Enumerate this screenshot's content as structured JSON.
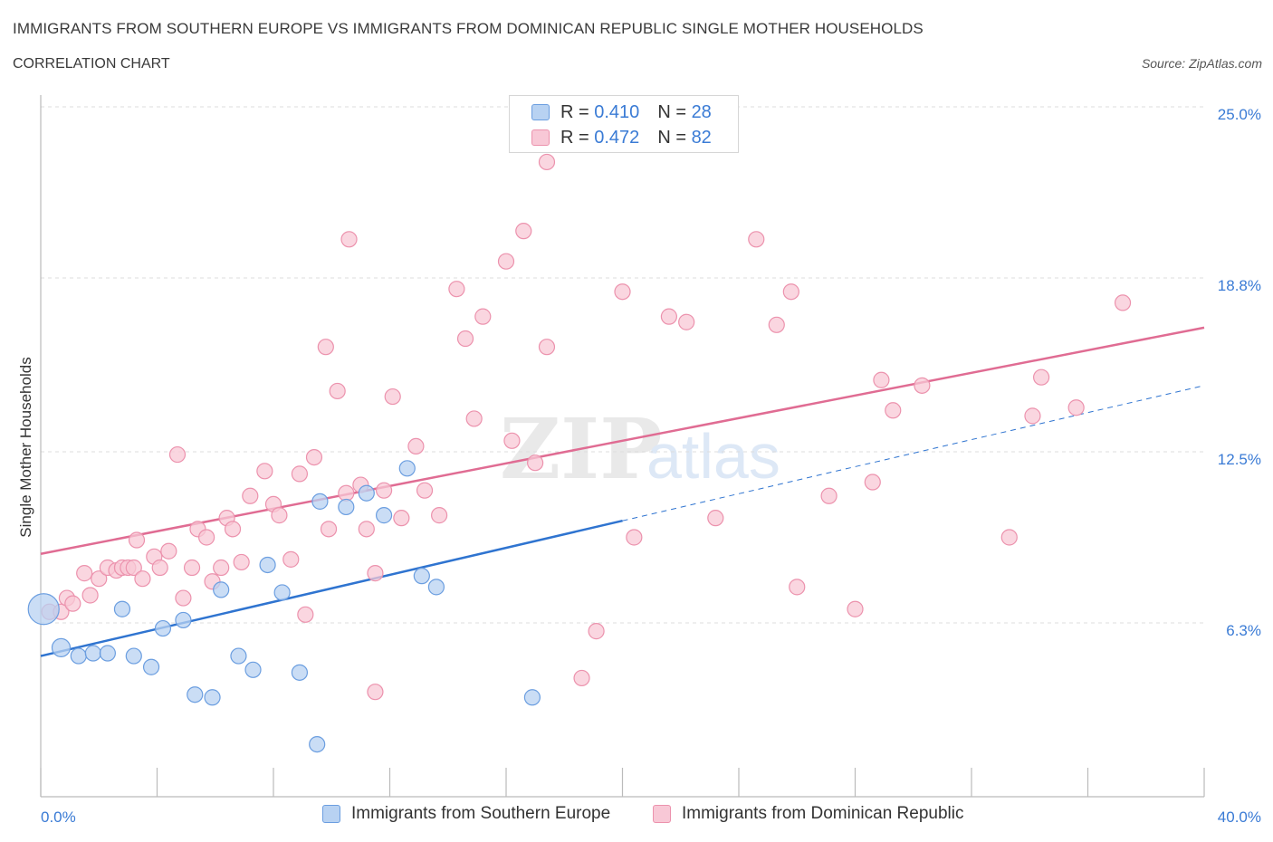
{
  "title": "IMMIGRANTS FROM SOUTHERN EUROPE VS IMMIGRANTS FROM DOMINICAN REPUBLIC SINGLE MOTHER HOUSEHOLDS",
  "subtitle": "CORRELATION CHART",
  "source": "Source: ZipAtlas.com",
  "watermark": {
    "zip": "ZIP",
    "atlas": "atlas"
  },
  "colors": {
    "blue_fill": "#b8d2f2",
    "blue_stroke": "#6b9ee0",
    "blue_line": "#2f74d0",
    "pink_fill": "#f8c8d6",
    "pink_stroke": "#ec92ad",
    "pink_line": "#e06c93",
    "axis_text": "#3a7bd5",
    "grid": "#dddddd"
  },
  "legend": {
    "r_label": "R = ",
    "n_label": "N = ",
    "rows": [
      {
        "series": "blue",
        "r_value": "0.410",
        "n_value": "28"
      },
      {
        "series": "pink",
        "r_value": "0.472",
        "n_value": "82"
      }
    ]
  },
  "bottom_legend": [
    {
      "series": "blue",
      "label": "Immigrants from Southern Europe"
    },
    {
      "series": "pink",
      "label": "Immigrants from Dominican Republic"
    }
  ],
  "chart_data": {
    "type": "scatter",
    "title": "IMMIGRANTS FROM SOUTHERN EUROPE VS IMMIGRANTS FROM DOMINICAN REPUBLIC SINGLE MOTHER HOUSEHOLDS",
    "xlabel": "",
    "ylabel": "Single Mother Households",
    "xlim": [
      0,
      40
    ],
    "ylim": [
      0,
      25
    ],
    "x_tick_labels": [
      "0.0%",
      "40.0%"
    ],
    "y_tick_labels": [
      "6.3%",
      "12.5%",
      "18.8%",
      "25.0%"
    ],
    "y_tick_values": [
      6.3,
      12.5,
      18.8,
      25.0
    ],
    "grid": true,
    "legend_position": "top-center",
    "series": [
      {
        "name": "Immigrants from Southern Europe",
        "color": "blue",
        "r": 0.41,
        "n": 28,
        "points": [
          [
            0.1,
            6.8,
            3
          ],
          [
            0.7,
            5.4,
            2
          ],
          [
            1.3,
            5.1,
            1
          ],
          [
            1.8,
            5.2,
            1
          ],
          [
            2.3,
            5.2,
            1
          ],
          [
            2.8,
            6.8,
            1
          ],
          [
            3.2,
            5.1,
            1
          ],
          [
            3.8,
            4.7,
            1
          ],
          [
            4.2,
            6.1,
            1
          ],
          [
            4.9,
            6.4,
            1
          ],
          [
            5.3,
            3.7,
            1
          ],
          [
            5.9,
            3.6,
            1
          ],
          [
            6.2,
            7.5,
            1
          ],
          [
            6.8,
            5.1,
            1
          ],
          [
            7.3,
            4.6,
            1
          ],
          [
            7.8,
            8.4,
            1
          ],
          [
            8.3,
            7.4,
            1
          ],
          [
            8.9,
            4.5,
            1
          ],
          [
            9.5,
            1.9,
            1
          ],
          [
            9.6,
            10.7,
            1
          ],
          [
            10.5,
            10.5,
            1
          ],
          [
            11.2,
            11.0,
            1
          ],
          [
            11.8,
            10.2,
            1
          ],
          [
            12.6,
            11.9,
            1
          ],
          [
            13.1,
            8.0,
            1
          ],
          [
            13.6,
            7.6,
            1
          ],
          [
            16.9,
            3.6,
            1
          ]
        ],
        "trend": {
          "x": [
            0,
            40
          ],
          "y": [
            5.1,
            14.9
          ],
          "solid_until_x": 20
        }
      },
      {
        "name": "Immigrants from Dominican Republic",
        "color": "pink",
        "r": 0.472,
        "n": 82,
        "points": [
          [
            0.3,
            6.7,
            1
          ],
          [
            0.7,
            6.7,
            1
          ],
          [
            0.9,
            7.2,
            1
          ],
          [
            1.1,
            7.0,
            1
          ],
          [
            1.5,
            8.1,
            1
          ],
          [
            1.7,
            7.3,
            1
          ],
          [
            2.0,
            7.9,
            1
          ],
          [
            2.3,
            8.3,
            1
          ],
          [
            2.6,
            8.2,
            1
          ],
          [
            2.8,
            8.3,
            1
          ],
          [
            3.0,
            8.3,
            1
          ],
          [
            3.2,
            8.3,
            1
          ],
          [
            3.3,
            9.3,
            1
          ],
          [
            3.5,
            7.9,
            1
          ],
          [
            3.9,
            8.7,
            1
          ],
          [
            4.1,
            8.3,
            1
          ],
          [
            4.4,
            8.9,
            1
          ],
          [
            4.7,
            12.4,
            1
          ],
          [
            4.9,
            7.2,
            1
          ],
          [
            5.2,
            8.3,
            1
          ],
          [
            5.4,
            9.7,
            1
          ],
          [
            5.7,
            9.4,
            1
          ],
          [
            5.9,
            7.8,
            1
          ],
          [
            6.2,
            8.3,
            1
          ],
          [
            6.4,
            10.1,
            1
          ],
          [
            6.6,
            9.7,
            1
          ],
          [
            6.9,
            8.5,
            1
          ],
          [
            7.2,
            10.9,
            1
          ],
          [
            7.7,
            11.8,
            1
          ],
          [
            8.0,
            10.6,
            1
          ],
          [
            8.2,
            10.2,
            1
          ],
          [
            8.6,
            8.6,
            1
          ],
          [
            8.9,
            11.7,
            1
          ],
          [
            9.1,
            6.6,
            1
          ],
          [
            9.4,
            12.3,
            1
          ],
          [
            9.8,
            16.3,
            1
          ],
          [
            9.9,
            9.7,
            1
          ],
          [
            10.2,
            14.7,
            1
          ],
          [
            10.5,
            11.0,
            1
          ],
          [
            10.6,
            20.2,
            1
          ],
          [
            11.0,
            11.3,
            1
          ],
          [
            11.2,
            9.7,
            1
          ],
          [
            11.5,
            3.8,
            1
          ],
          [
            11.5,
            8.1,
            1
          ],
          [
            11.8,
            11.1,
            1
          ],
          [
            12.1,
            14.5,
            1
          ],
          [
            12.4,
            10.1,
            1
          ],
          [
            12.9,
            12.7,
            1
          ],
          [
            13.2,
            11.1,
            1
          ],
          [
            13.7,
            10.2,
            1
          ],
          [
            14.3,
            18.4,
            1
          ],
          [
            14.6,
            16.6,
            1
          ],
          [
            14.9,
            13.7,
            1
          ],
          [
            15.2,
            17.4,
            1
          ],
          [
            16.2,
            12.9,
            1
          ],
          [
            16.0,
            19.4,
            1
          ],
          [
            16.6,
            20.5,
            1
          ],
          [
            17.0,
            12.1,
            1
          ],
          [
            17.4,
            16.3,
            1
          ],
          [
            17.4,
            23.0,
            1
          ],
          [
            18.6,
            4.3,
            1
          ],
          [
            19.1,
            6.0,
            1
          ],
          [
            20.0,
            18.3,
            1
          ],
          [
            20.4,
            9.4,
            1
          ],
          [
            21.6,
            17.4,
            1
          ],
          [
            22.2,
            17.2,
            1
          ],
          [
            23.2,
            10.1,
            1
          ],
          [
            24.6,
            20.2,
            1
          ],
          [
            25.3,
            17.1,
            1
          ],
          [
            25.8,
            18.3,
            1
          ],
          [
            26.0,
            7.6,
            1
          ],
          [
            27.1,
            10.9,
            1
          ],
          [
            28.0,
            6.8,
            1
          ],
          [
            28.6,
            11.4,
            1
          ],
          [
            28.9,
            15.1,
            1
          ],
          [
            29.3,
            14.0,
            1
          ],
          [
            30.3,
            14.9,
            1
          ],
          [
            33.3,
            9.4,
            1
          ],
          [
            34.1,
            13.8,
            1
          ],
          [
            34.4,
            15.2,
            1
          ],
          [
            35.6,
            14.1,
            1
          ],
          [
            37.2,
            17.9,
            1
          ]
        ],
        "trend": {
          "x": [
            0,
            40
          ],
          "y": [
            8.8,
            17.0
          ]
        }
      }
    ]
  }
}
